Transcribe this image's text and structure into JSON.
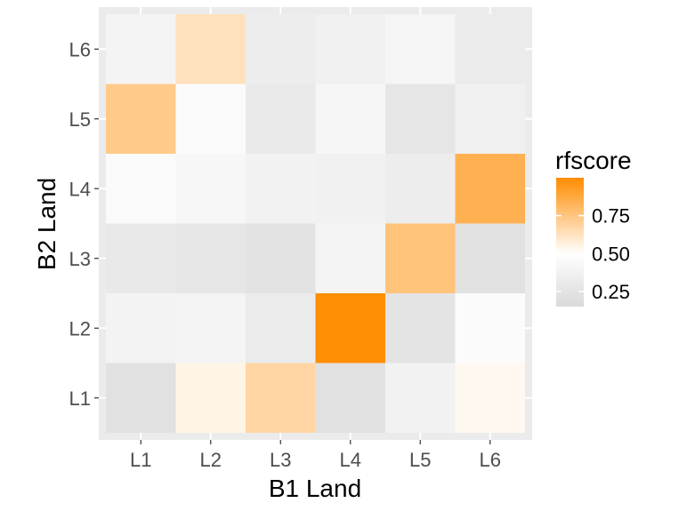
{
  "chart_data": {
    "type": "heatmap",
    "title": "",
    "xlabel": "B1 Land",
    "ylabel": "B2 Land",
    "x_categories": [
      "L1",
      "L2",
      "L3",
      "L4",
      "L5",
      "L6"
    ],
    "y_categories": [
      "L1",
      "L2",
      "L3",
      "L4",
      "L5",
      "L6"
    ],
    "values": [
      [
        0.22,
        0.55,
        0.68,
        0.22,
        0.38,
        0.53
      ],
      [
        0.39,
        0.4,
        0.32,
        0.99,
        0.25,
        0.46
      ],
      [
        0.3,
        0.27,
        0.24,
        0.4,
        0.76,
        0.22
      ],
      [
        0.45,
        0.43,
        0.38,
        0.37,
        0.33,
        0.84
      ],
      [
        0.73,
        0.46,
        0.31,
        0.42,
        0.27,
        0.36
      ],
      [
        0.4,
        0.63,
        0.33,
        0.36,
        0.41,
        0.32
      ]
    ],
    "color_scale": {
      "low": "#d9d9d9",
      "mid": "#ffffff",
      "high": "#ff8c00",
      "midpoint": 0.5,
      "domain": [
        0.15,
        1.0
      ]
    },
    "legend": {
      "title": "rfscore",
      "breaks": [
        0.25,
        0.5,
        0.75
      ],
      "labels": [
        "0.25",
        "0.50",
        "0.75"
      ],
      "position": "right"
    },
    "grid": true,
    "panel_background": "#ebebeb"
  }
}
